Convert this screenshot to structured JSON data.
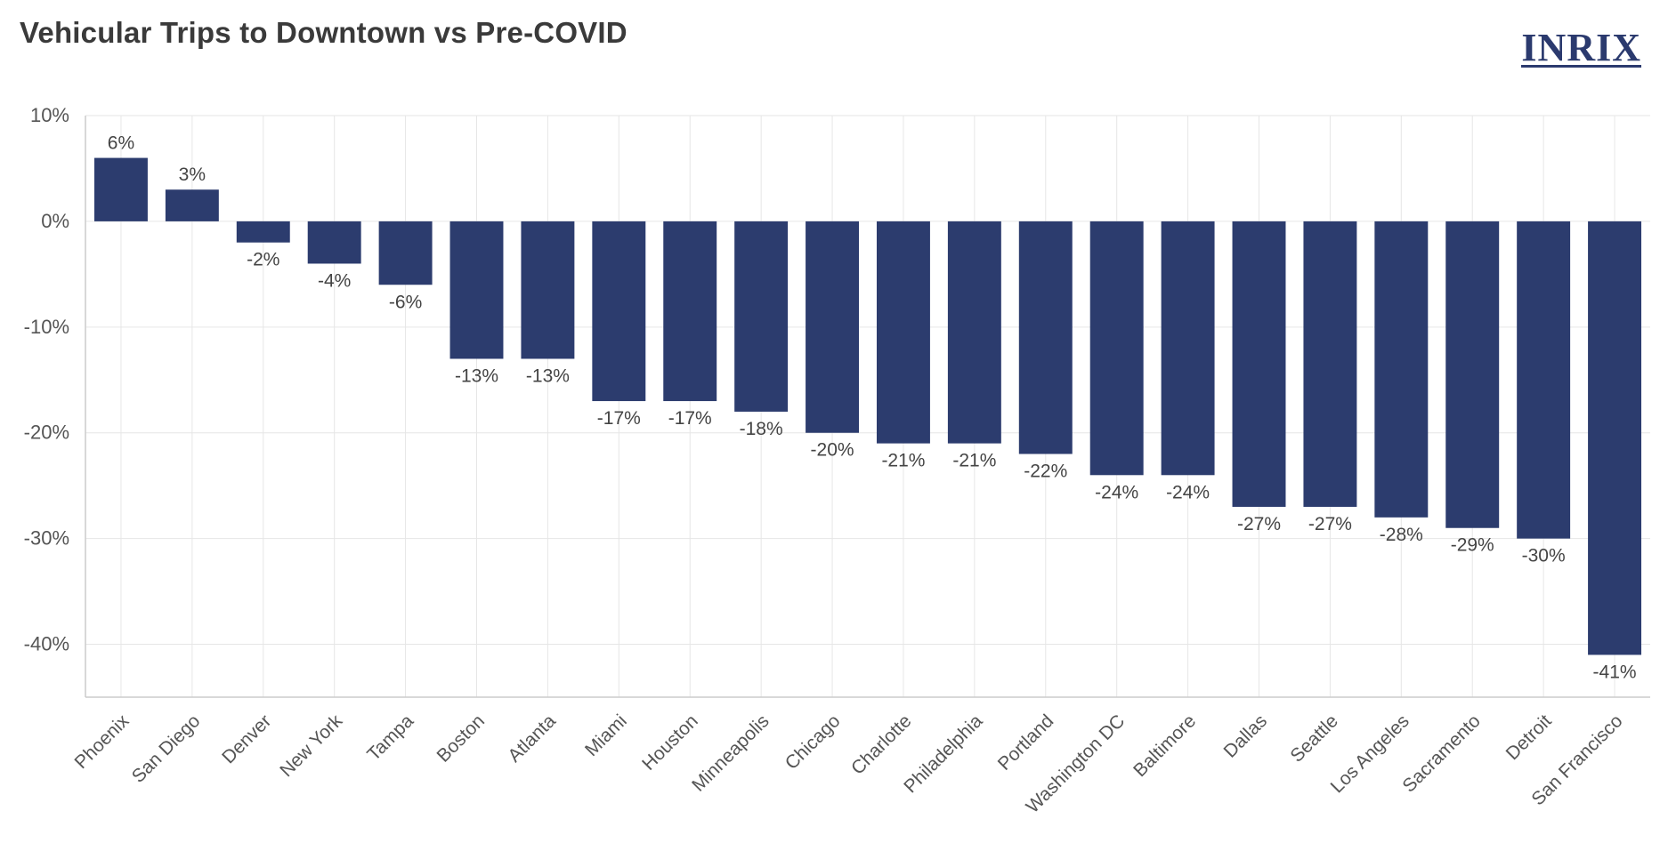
{
  "header": {
    "title": "Vehicular Trips to Downtown vs Pre-COVID",
    "logo_text": "INRIX"
  },
  "colors": {
    "bar": "#2c3c6e",
    "grid": "#e6e6e6",
    "axis": "#cccccc"
  },
  "chart_data": {
    "type": "bar",
    "title": "Vehicular Trips to Downtown vs Pre-COVID",
    "xlabel": "",
    "ylabel": "",
    "ylim": [
      -45,
      10
    ],
    "yticks": [
      10,
      0,
      -10,
      -20,
      -30,
      -40
    ],
    "ytick_labels": [
      "10%",
      "0%",
      "-10%",
      "-20%",
      "-30%",
      "-40%"
    ],
    "grid": true,
    "categories": [
      "Phoenix",
      "San Diego",
      "Denver",
      "New York",
      "Tampa",
      "Boston",
      "Atlanta",
      "Miami",
      "Houston",
      "Minneapolis",
      "Chicago",
      "Charlotte",
      "Philadelphia",
      "Portland",
      "Washington DC",
      "Baltimore",
      "Dallas",
      "Seattle",
      "Los Angeles",
      "Sacramento",
      "Detroit",
      "San Francisco"
    ],
    "values": [
      6,
      3,
      -2,
      -4,
      -6,
      -13,
      -13,
      -17,
      -17,
      -18,
      -20,
      -21,
      -21,
      -22,
      -24,
      -24,
      -27,
      -27,
      -28,
      -29,
      -30,
      -41
    ],
    "value_labels": [
      "6%",
      "3%",
      "-2%",
      "-4%",
      "-6%",
      "-13%",
      "-13%",
      "-17%",
      "-17%",
      "-18%",
      "-20%",
      "-21%",
      "-21%",
      "-22%",
      "-24%",
      "-24%",
      "-27%",
      "-27%",
      "-28%",
      "-29%",
      "-30%",
      "-41%"
    ]
  }
}
